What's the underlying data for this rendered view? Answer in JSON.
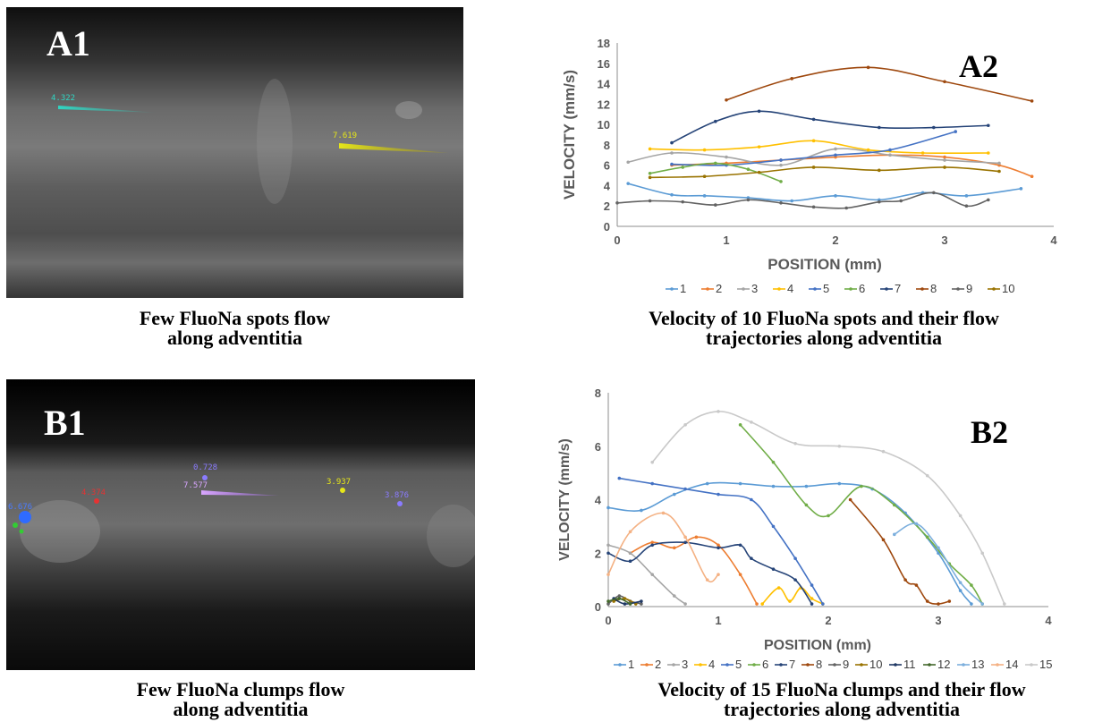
{
  "panels": {
    "a1": {
      "label": "A1",
      "caption_line1": "Few FluoNa spots flow",
      "caption_line2": "along adventitia",
      "track_labels": [
        {
          "text": "4.322",
          "color": "#2fd6c3"
        },
        {
          "text": "7.619",
          "color": "#e6e619"
        }
      ]
    },
    "b1": {
      "label": "B1",
      "caption_line1": "Few FluoNa clumps flow",
      "caption_line2": "along adventitia",
      "track_labels": [
        {
          "text": "0.728",
          "color": "#8a7bff"
        },
        {
          "text": "7.577",
          "color": "#d9a6ff"
        },
        {
          "text": "3.937",
          "color": "#e6e619"
        },
        {
          "text": "3.876",
          "color": "#8a7bff"
        },
        {
          "text": "4.374",
          "color": "#e53333"
        },
        {
          "text": "6.676",
          "color": "#4a7bff"
        }
      ]
    },
    "a2": {
      "label": "A2",
      "caption_line1": "Velocity of 10 FluoNa spots and their flow",
      "caption_line2": "trajectories along adventitia"
    },
    "b2": {
      "label": "B2",
      "caption_line1": "Velocity of 15 FluoNa clumps and their flow",
      "caption_line2": "trajectories along adventitia"
    }
  },
  "chart_data": [
    {
      "type": "line",
      "xlabel": "POSITION (mm)",
      "ylabel": "VELOCITY (mm/s)",
      "xlim": [
        0,
        4
      ],
      "ylim": [
        0,
        18
      ],
      "xticks": [
        0,
        1,
        2,
        3,
        4
      ],
      "yticks": [
        0,
        2,
        4,
        6,
        8,
        10,
        12,
        14,
        16,
        18
      ],
      "legend_position": "bottom",
      "series": [
        {
          "name": "1",
          "color": "#5b9bd5",
          "x": [
            0.1,
            0.5,
            0.8,
            1.2,
            1.6,
            2.0,
            2.4,
            2.8,
            3.2,
            3.7
          ],
          "y": [
            4.2,
            3.1,
            3.0,
            2.8,
            2.5,
            3.0,
            2.6,
            3.3,
            3.0,
            3.7
          ]
        },
        {
          "name": "2",
          "color": "#ed7d31",
          "x": [
            0.5,
            1.0,
            1.5,
            2.0,
            2.5,
            3.0,
            3.5,
            3.8
          ],
          "y": [
            6.0,
            6.2,
            6.5,
            6.8,
            7.0,
            6.8,
            6.0,
            4.9
          ]
        },
        {
          "name": "3",
          "color": "#a5a5a5",
          "x": [
            0.1,
            0.5,
            1.0,
            1.5,
            2.0,
            2.5,
            3.0,
            3.5
          ],
          "y": [
            6.3,
            7.2,
            6.8,
            6.0,
            7.6,
            7.0,
            6.5,
            6.2
          ]
        },
        {
          "name": "4",
          "color": "#ffc000",
          "x": [
            0.3,
            0.8,
            1.3,
            1.8,
            2.3,
            2.8,
            3.4
          ],
          "y": [
            7.6,
            7.5,
            7.8,
            8.4,
            7.5,
            7.2,
            7.2
          ]
        },
        {
          "name": "5",
          "color": "#4472c4",
          "x": [
            0.5,
            1.0,
            1.5,
            2.0,
            2.5,
            3.1
          ],
          "y": [
            6.1,
            6.0,
            6.5,
            7.0,
            7.5,
            9.3
          ]
        },
        {
          "name": "6",
          "color": "#70ad47",
          "x": [
            0.3,
            0.6,
            0.9,
            1.2,
            1.5
          ],
          "y": [
            5.2,
            5.8,
            6.2,
            5.6,
            4.4
          ]
        },
        {
          "name": "7",
          "color": "#264478",
          "x": [
            0.5,
            0.9,
            1.3,
            1.8,
            2.4,
            2.9,
            3.4
          ],
          "y": [
            8.2,
            10.3,
            11.3,
            10.5,
            9.7,
            9.7,
            9.9
          ]
        },
        {
          "name": "8",
          "color": "#9e480e",
          "x": [
            1.0,
            1.6,
            2.3,
            3.0,
            3.8
          ],
          "y": [
            12.4,
            14.5,
            15.6,
            14.2,
            12.3
          ]
        },
        {
          "name": "9",
          "color": "#636363",
          "x": [
            0.0,
            0.3,
            0.6,
            0.9,
            1.2,
            1.5,
            1.8,
            2.1,
            2.4,
            2.6,
            2.9,
            3.2,
            3.4
          ],
          "y": [
            2.3,
            2.5,
            2.4,
            2.1,
            2.6,
            2.3,
            1.9,
            1.8,
            2.4,
            2.5,
            3.3,
            2.0,
            2.6
          ]
        },
        {
          "name": "10",
          "color": "#997300",
          "x": [
            0.3,
            0.8,
            1.3,
            1.8,
            2.4,
            3.0,
            3.5
          ],
          "y": [
            4.8,
            4.9,
            5.3,
            5.8,
            5.5,
            5.8,
            5.4
          ]
        }
      ]
    },
    {
      "type": "line",
      "xlabel": "POSITION (mm)",
      "ylabel": "VELOCITY (mm/s)",
      "xlim": [
        0,
        4
      ],
      "ylim": [
        0,
        8
      ],
      "xticks": [
        0,
        1,
        2,
        3,
        4
      ],
      "yticks": [
        0,
        2,
        4,
        6,
        8
      ],
      "legend_position": "bottom",
      "series": [
        {
          "name": "1",
          "color": "#5b9bd5",
          "x": [
            0.0,
            0.3,
            0.6,
            0.9,
            1.2,
            1.5,
            1.8,
            2.1,
            2.4,
            2.7,
            3.0,
            3.2,
            3.3
          ],
          "y": [
            3.7,
            3.6,
            4.2,
            4.6,
            4.6,
            4.5,
            4.5,
            4.6,
            4.4,
            3.5,
            2.0,
            0.6,
            0.1
          ]
        },
        {
          "name": "2",
          "color": "#ed7d31",
          "x": [
            0.2,
            0.4,
            0.6,
            0.8,
            1.0,
            1.2,
            1.35
          ],
          "y": [
            2.0,
            2.4,
            2.2,
            2.6,
            2.3,
            1.2,
            0.1
          ]
        },
        {
          "name": "3",
          "color": "#a5a5a5",
          "x": [
            0.0,
            0.2,
            0.4,
            0.6,
            0.7
          ],
          "y": [
            2.3,
            2.0,
            1.2,
            0.4,
            0.1
          ]
        },
        {
          "name": "4",
          "color": "#ffc000",
          "x": [
            1.4,
            1.55,
            1.65,
            1.75,
            1.85,
            1.95
          ],
          "y": [
            0.1,
            0.7,
            0.2,
            0.7,
            0.3,
            0.1
          ]
        },
        {
          "name": "5",
          "color": "#4472c4",
          "x": [
            0.1,
            0.4,
            0.7,
            1.0,
            1.3,
            1.5,
            1.7,
            1.85,
            1.95
          ],
          "y": [
            4.8,
            4.6,
            4.4,
            4.2,
            4.0,
            3.0,
            1.8,
            0.8,
            0.1
          ]
        },
        {
          "name": "6",
          "color": "#70ad47",
          "x": [
            1.2,
            1.5,
            1.8,
            2.0,
            2.3,
            2.6,
            2.9,
            3.1,
            3.3,
            3.4
          ],
          "y": [
            6.8,
            5.4,
            3.8,
            3.4,
            4.5,
            3.8,
            2.6,
            1.6,
            0.8,
            0.1
          ]
        },
        {
          "name": "7",
          "color": "#264478",
          "x": [
            0.0,
            0.2,
            0.4,
            0.7,
            1.0,
            1.2,
            1.3,
            1.5,
            1.7,
            1.85
          ],
          "y": [
            2.0,
            1.7,
            2.3,
            2.4,
            2.2,
            2.3,
            1.8,
            1.4,
            1.0,
            0.1
          ]
        },
        {
          "name": "8",
          "color": "#9e480e",
          "x": [
            2.2,
            2.5,
            2.7,
            2.8,
            2.9,
            3.0,
            3.1
          ],
          "y": [
            4.0,
            2.5,
            1.0,
            0.8,
            0.2,
            0.1,
            0.2
          ]
        },
        {
          "name": "9",
          "color": "#636363",
          "x": [
            0.0,
            0.1,
            0.2,
            0.3
          ],
          "y": [
            0.1,
            0.4,
            0.2,
            0.1
          ]
        },
        {
          "name": "10",
          "color": "#997300",
          "x": [
            0.05,
            0.15,
            0.25
          ],
          "y": [
            0.2,
            0.3,
            0.1
          ]
        },
        {
          "name": "11",
          "color": "#1f3864",
          "x": [
            0.05,
            0.15,
            0.3
          ],
          "y": [
            0.3,
            0.1,
            0.2
          ]
        },
        {
          "name": "12",
          "color": "#43682b",
          "x": [
            0.0,
            0.1,
            0.2
          ],
          "y": [
            0.2,
            0.3,
            0.1
          ]
        },
        {
          "name": "13",
          "color": "#7cafdd",
          "x": [
            2.6,
            2.8,
            3.0,
            3.2,
            3.4
          ],
          "y": [
            2.7,
            3.1,
            2.2,
            0.9,
            0.1
          ]
        },
        {
          "name": "14",
          "color": "#f4b183",
          "x": [
            0.0,
            0.2,
            0.5,
            0.7,
            0.9,
            1.0
          ],
          "y": [
            1.2,
            2.8,
            3.5,
            2.6,
            1.0,
            1.2
          ]
        },
        {
          "name": "15",
          "color": "#c9c9c9",
          "x": [
            0.4,
            0.7,
            1.0,
            1.3,
            1.7,
            2.1,
            2.5,
            2.9,
            3.2,
            3.4,
            3.6
          ],
          "y": [
            5.4,
            6.8,
            7.3,
            6.9,
            6.1,
            6.0,
            5.8,
            4.9,
            3.4,
            2.0,
            0.1
          ]
        }
      ]
    }
  ]
}
